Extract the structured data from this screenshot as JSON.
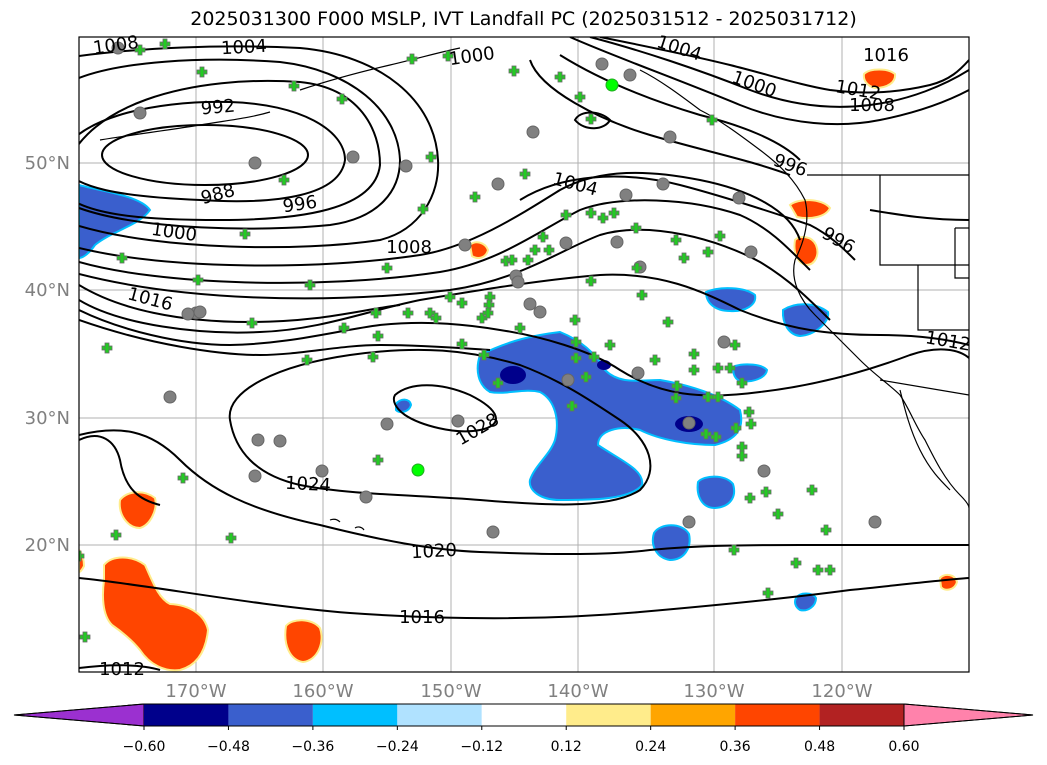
{
  "title": "2025031300 F000 MSLP, IVT Landfall PC (2025031512 - 2025031712)",
  "lon_labels": [
    "170°W",
    "160°W",
    "150°W",
    "140°W",
    "130°W",
    "120°W"
  ],
  "lat_labels": [
    "50°N",
    "40°N",
    "30°N",
    "20°N"
  ],
  "colorbar": {
    "ticks": [
      "−0.60",
      "−0.48",
      "−0.36",
      "−0.24",
      "−0.12",
      "0.12",
      "0.24",
      "0.36",
      "0.48",
      "0.60"
    ],
    "colors": [
      "#9b30d0",
      "#00008b",
      "#3a5fcd",
      "#00bfff",
      "#b0e2ff",
      "#ffffff",
      "#ffec8b",
      "#ffa500",
      "#ff4500",
      "#b22222",
      "#ff82ab"
    ]
  },
  "contour_labels": [
    "1008",
    "1004",
    "1000",
    "1016",
    "1012",
    "992",
    "1004",
    "1000",
    "1008",
    "988",
    "996",
    "996",
    "1000",
    "1008",
    "996",
    "1016",
    "1012",
    "1028",
    "1024",
    "1020",
    "1016",
    "1012",
    "1004"
  ],
  "colors": {
    "station_circle": "#808080",
    "station_cross": "#22cc22",
    "coast": "#000000"
  },
  "map_extent": {
    "lon": [
      -180,
      -110
    ],
    "lat": [
      10,
      60
    ]
  }
}
